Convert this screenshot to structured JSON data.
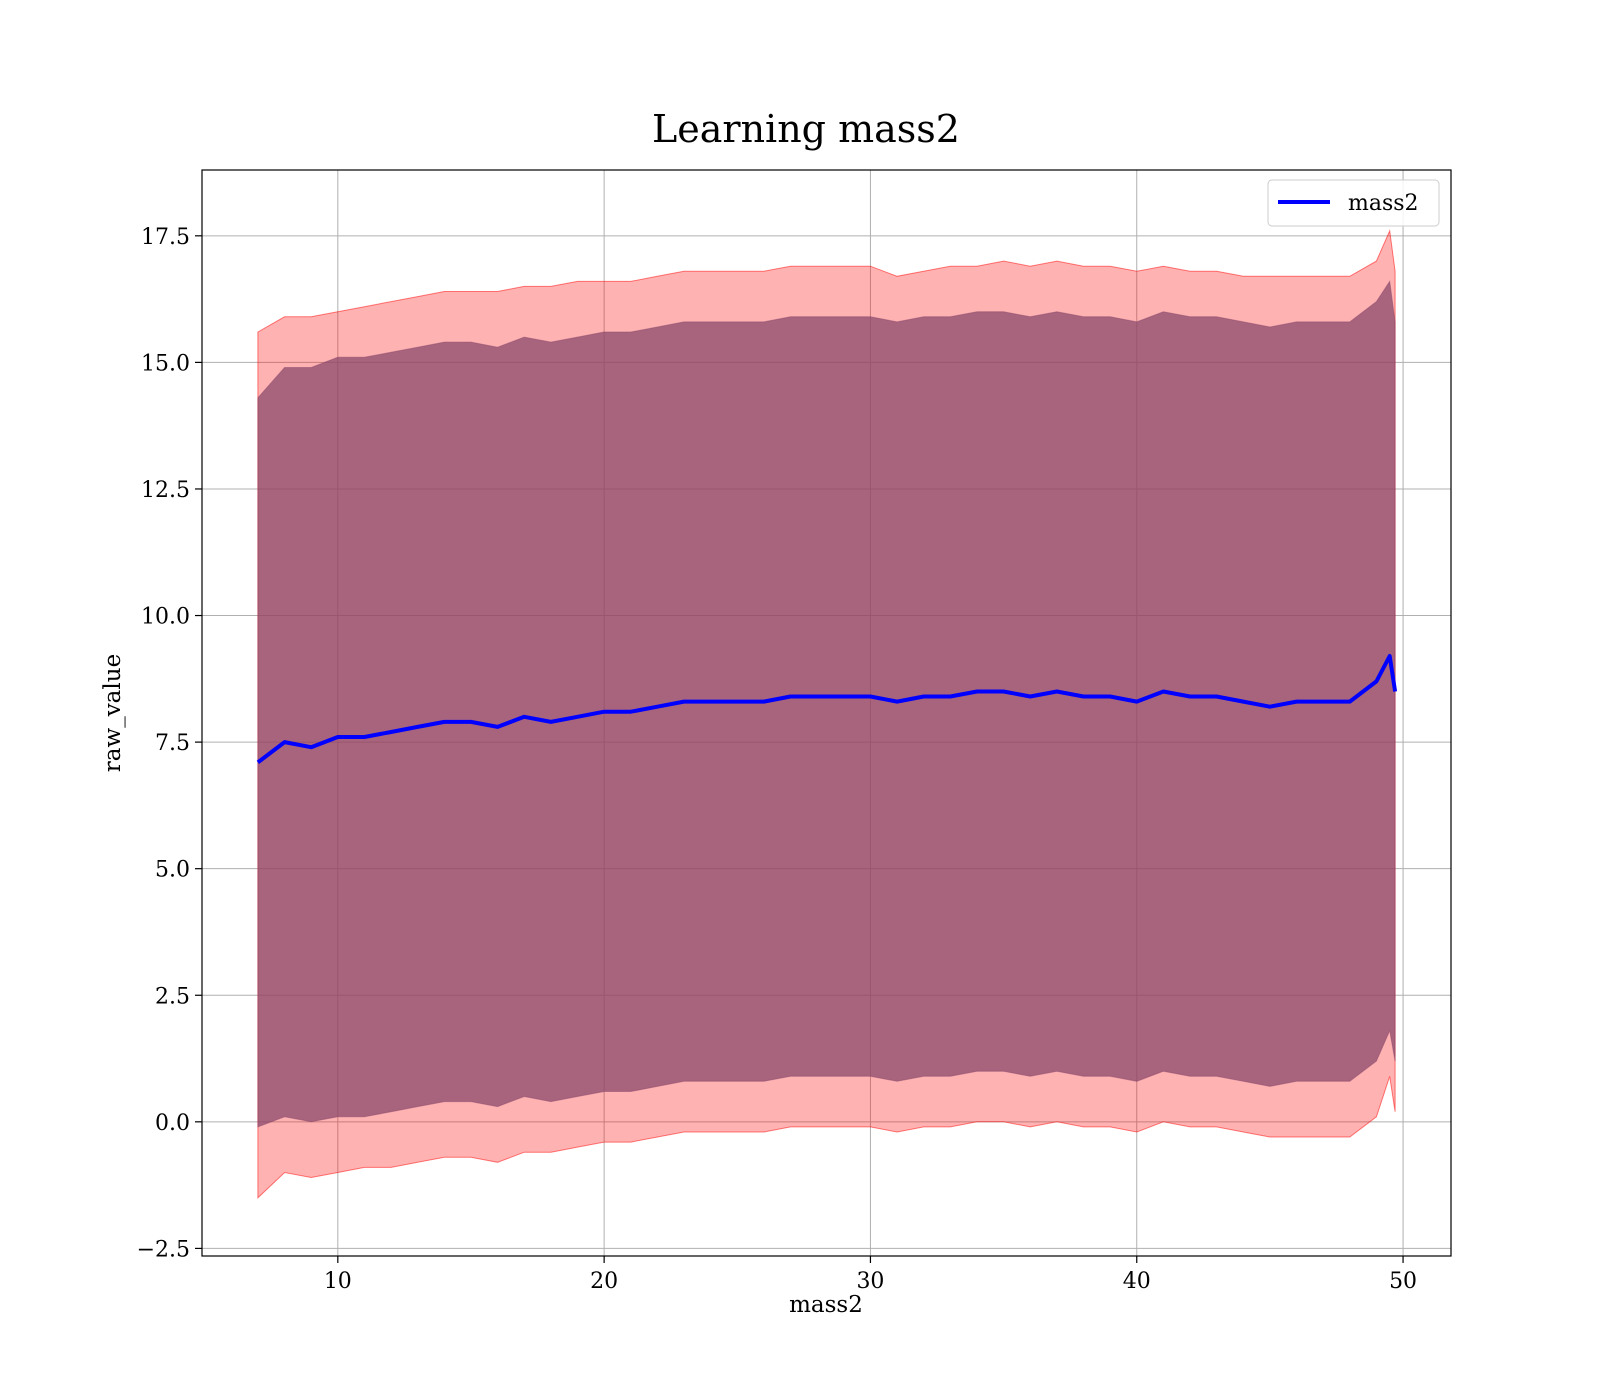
{
  "chart_data": {
    "type": "line",
    "title": "Learning mass2",
    "xlabel": "mass2",
    "ylabel": "raw_value",
    "xlim": [
      4.9,
      51.8
    ],
    "ylim": [
      -2.65,
      18.8
    ],
    "x_ticks": [
      10,
      20,
      30,
      40,
      50
    ],
    "x_tick_labels": [
      "10",
      "20",
      "30",
      "40",
      "50"
    ],
    "y_ticks": [
      -2.5,
      0.0,
      2.5,
      5.0,
      7.5,
      10.0,
      12.5,
      15.0,
      17.5
    ],
    "y_tick_labels": [
      "−2.5",
      "0.0",
      "2.5",
      "5.0",
      "7.5",
      "10.0",
      "12.5",
      "15.0",
      "17.5"
    ],
    "grid": true,
    "legend": {
      "position": "top-right",
      "entries": [
        "mass2"
      ]
    },
    "x": [
      7.0,
      8.0,
      9.0,
      10.0,
      11.0,
      12.0,
      13.0,
      14.0,
      15.0,
      16.0,
      17.0,
      18.0,
      19.0,
      20.0,
      21.0,
      22.0,
      23.0,
      24.0,
      25.0,
      26.0,
      27.0,
      28.0,
      29.0,
      30.0,
      31.0,
      32.0,
      33.0,
      34.0,
      35.0,
      36.0,
      37.0,
      38.0,
      39.0,
      40.0,
      41.0,
      42.0,
      43.0,
      44.0,
      45.0,
      46.0,
      47.0,
      48.0,
      49.0,
      49.5,
      49.7
    ],
    "series": [
      {
        "name": "mass2",
        "color": "#0000ff",
        "values": [
          7.1,
          7.5,
          7.4,
          7.6,
          7.6,
          7.7,
          7.8,
          7.9,
          7.9,
          7.8,
          8.0,
          7.9,
          8.0,
          8.1,
          8.1,
          8.2,
          8.3,
          8.3,
          8.3,
          8.3,
          8.4,
          8.4,
          8.4,
          8.4,
          8.3,
          8.4,
          8.4,
          8.5,
          8.5,
          8.4,
          8.5,
          8.4,
          8.4,
          8.3,
          8.5,
          8.4,
          8.4,
          8.3,
          8.2,
          8.3,
          8.3,
          8.3,
          8.7,
          9.2,
          8.5
        ]
      }
    ],
    "bands": [
      {
        "name": "outer band",
        "color": "#ff0000",
        "opacity": 0.3,
        "upper": [
          15.6,
          15.9,
          15.9,
          16.0,
          16.1,
          16.2,
          16.3,
          16.4,
          16.4,
          16.4,
          16.5,
          16.5,
          16.6,
          16.6,
          16.6,
          16.7,
          16.8,
          16.8,
          16.8,
          16.8,
          16.9,
          16.9,
          16.9,
          16.9,
          16.7,
          16.8,
          16.9,
          16.9,
          17.0,
          16.9,
          17.0,
          16.9,
          16.9,
          16.8,
          16.9,
          16.8,
          16.8,
          16.7,
          16.7,
          16.7,
          16.7,
          16.7,
          17.0,
          17.6,
          16.8
        ],
        "lower": [
          -1.5,
          -1.0,
          -1.1,
          -1.0,
          -0.9,
          -0.9,
          -0.8,
          -0.7,
          -0.7,
          -0.8,
          -0.6,
          -0.6,
          -0.5,
          -0.4,
          -0.4,
          -0.3,
          -0.2,
          -0.2,
          -0.2,
          -0.2,
          -0.1,
          -0.1,
          -0.1,
          -0.1,
          -0.2,
          -0.1,
          -0.1,
          0.0,
          0.0,
          -0.1,
          0.0,
          -0.1,
          -0.1,
          -0.2,
          0.0,
          -0.1,
          -0.1,
          -0.2,
          -0.3,
          -0.3,
          -0.3,
          -0.3,
          0.1,
          0.9,
          0.2
        ]
      },
      {
        "name": "inner band",
        "color": "#8b4a6b",
        "opacity": 0.75,
        "upper": [
          14.3,
          14.9,
          14.9,
          15.1,
          15.1,
          15.2,
          15.3,
          15.4,
          15.4,
          15.3,
          15.5,
          15.4,
          15.5,
          15.6,
          15.6,
          15.7,
          15.8,
          15.8,
          15.8,
          15.8,
          15.9,
          15.9,
          15.9,
          15.9,
          15.8,
          15.9,
          15.9,
          16.0,
          16.0,
          15.9,
          16.0,
          15.9,
          15.9,
          15.8,
          16.0,
          15.9,
          15.9,
          15.8,
          15.7,
          15.8,
          15.8,
          15.8,
          16.2,
          16.6,
          15.8
        ],
        "lower": [
          -0.1,
          0.1,
          0.0,
          0.1,
          0.1,
          0.2,
          0.3,
          0.4,
          0.4,
          0.3,
          0.5,
          0.4,
          0.5,
          0.6,
          0.6,
          0.7,
          0.8,
          0.8,
          0.8,
          0.8,
          0.9,
          0.9,
          0.9,
          0.9,
          0.8,
          0.9,
          0.9,
          1.0,
          1.0,
          0.9,
          1.0,
          0.9,
          0.9,
          0.8,
          1.0,
          0.9,
          0.9,
          0.8,
          0.7,
          0.8,
          0.8,
          0.8,
          1.2,
          1.8,
          1.2
        ]
      }
    ]
  }
}
